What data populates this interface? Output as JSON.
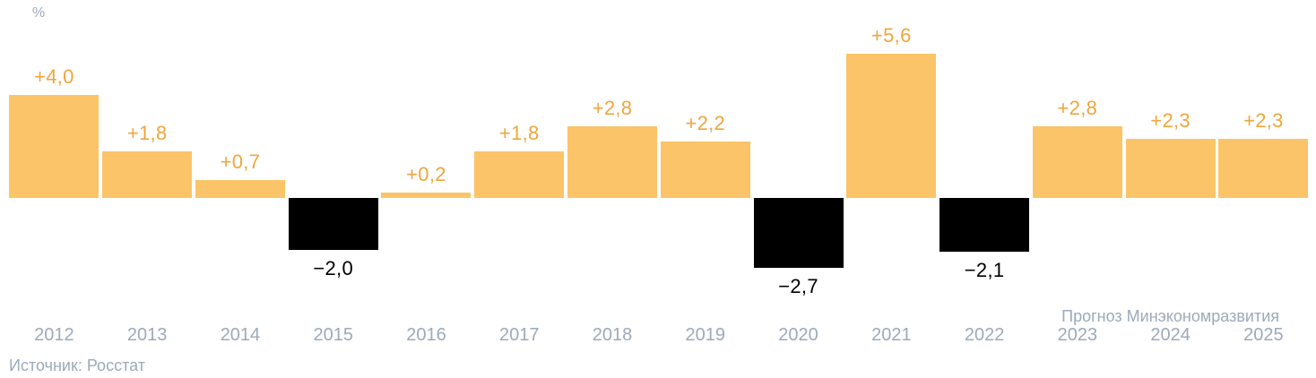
{
  "chart": {
    "unit_label": "%",
    "source": "Источник: Росстат",
    "forecast_note": "Прогноз Минэкономразвития"
  },
  "chart_data": {
    "type": "bar",
    "title": "",
    "xlabel": "",
    "ylabel": "%",
    "unit_label": "%",
    "categories": [
      "2012",
      "2013",
      "2014",
      "2015",
      "2016",
      "2017",
      "2018",
      "2019",
      "2020",
      "2021",
      "2022",
      "2023",
      "2024",
      "2025"
    ],
    "values": [
      4.0,
      1.8,
      0.7,
      -2.0,
      0.2,
      1.8,
      2.8,
      2.2,
      -2.7,
      5.6,
      -2.1,
      2.8,
      2.3,
      2.3
    ],
    "value_labels": [
      "+4,0",
      "+1,8",
      "+0,7",
      "−2,0",
      "+0,2",
      "+1,8",
      "+2,8",
      "+2,2",
      "−2,7",
      "+5,6",
      "−2,1",
      "+2,8",
      "+2,3",
      "+2,3"
    ],
    "source": "Источник: Росстат",
    "forecast_note": "Прогноз Минэкономразвития",
    "forecast_years": [
      "2023",
      "2024",
      "2025"
    ],
    "ylim": [
      -3.5,
      6.5
    ],
    "grid": false,
    "legend": "none",
    "colors": {
      "positive_bar": "#fbc468",
      "negative_bar": "#000000",
      "positive_label": "#f0a53c",
      "negative_label": "#000000",
      "axis_text": "#9caab9"
    }
  }
}
